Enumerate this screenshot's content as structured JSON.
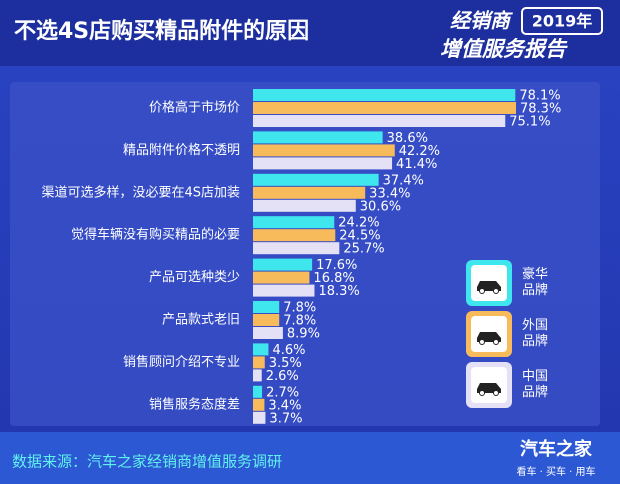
{
  "chart_data": {
    "type": "hbar",
    "title": "不选4S店购买精品附件的原因",
    "categories": [
      "价格高于市场价",
      "精品附件价格不透明",
      "渠道可选多样，没必要在4S店加装",
      "觉得车辆没有购买精品的必要",
      "产品可选种类少",
      "产品款式老旧",
      "销售顾问介绍不专业",
      "销售服务态度差"
    ],
    "series": [
      {
        "name": "豪华品牌",
        "color": "#3fe6ee",
        "values": [
          78.1,
          38.6,
          37.4,
          24.2,
          17.6,
          7.8,
          4.6,
          2.7
        ],
        "value_labels": [
          "78.1%",
          "38.6%",
          "37.4%",
          "24.2%",
          "17.6%",
          "7.8%",
          "4.6%",
          "2.7%"
        ]
      },
      {
        "name": "外国品牌",
        "color": "#f7bb5c",
        "values": [
          78.3,
          42.2,
          33.4,
          24.5,
          16.8,
          7.8,
          3.5,
          3.4
        ],
        "value_labels": [
          "78.3%",
          "42.2%",
          "33.4%",
          "24.5%",
          "16.8%",
          "7.8%",
          "3.5%",
          "3.4%"
        ]
      },
      {
        "name": "中国品牌",
        "color": "#e4e1f6",
        "values": [
          75.1,
          41.4,
          30.6,
          25.7,
          18.3,
          8.9,
          2.6,
          3.7
        ],
        "value_labels": [
          "75.1%",
          "41.4%",
          "30.6%",
          "25.7%",
          "18.3%",
          "8.9%",
          "2.6%",
          "3.7%"
        ]
      }
    ]
  },
  "header": {
    "report_name": "经销商",
    "report_year": "2019年",
    "report_subtitle": "增值服务报告"
  },
  "footer": {
    "source": "数据来源：汽车之家经销商增值服务调研",
    "brand": "汽车之家",
    "slogan": "看车 · 买车 · 用车"
  }
}
